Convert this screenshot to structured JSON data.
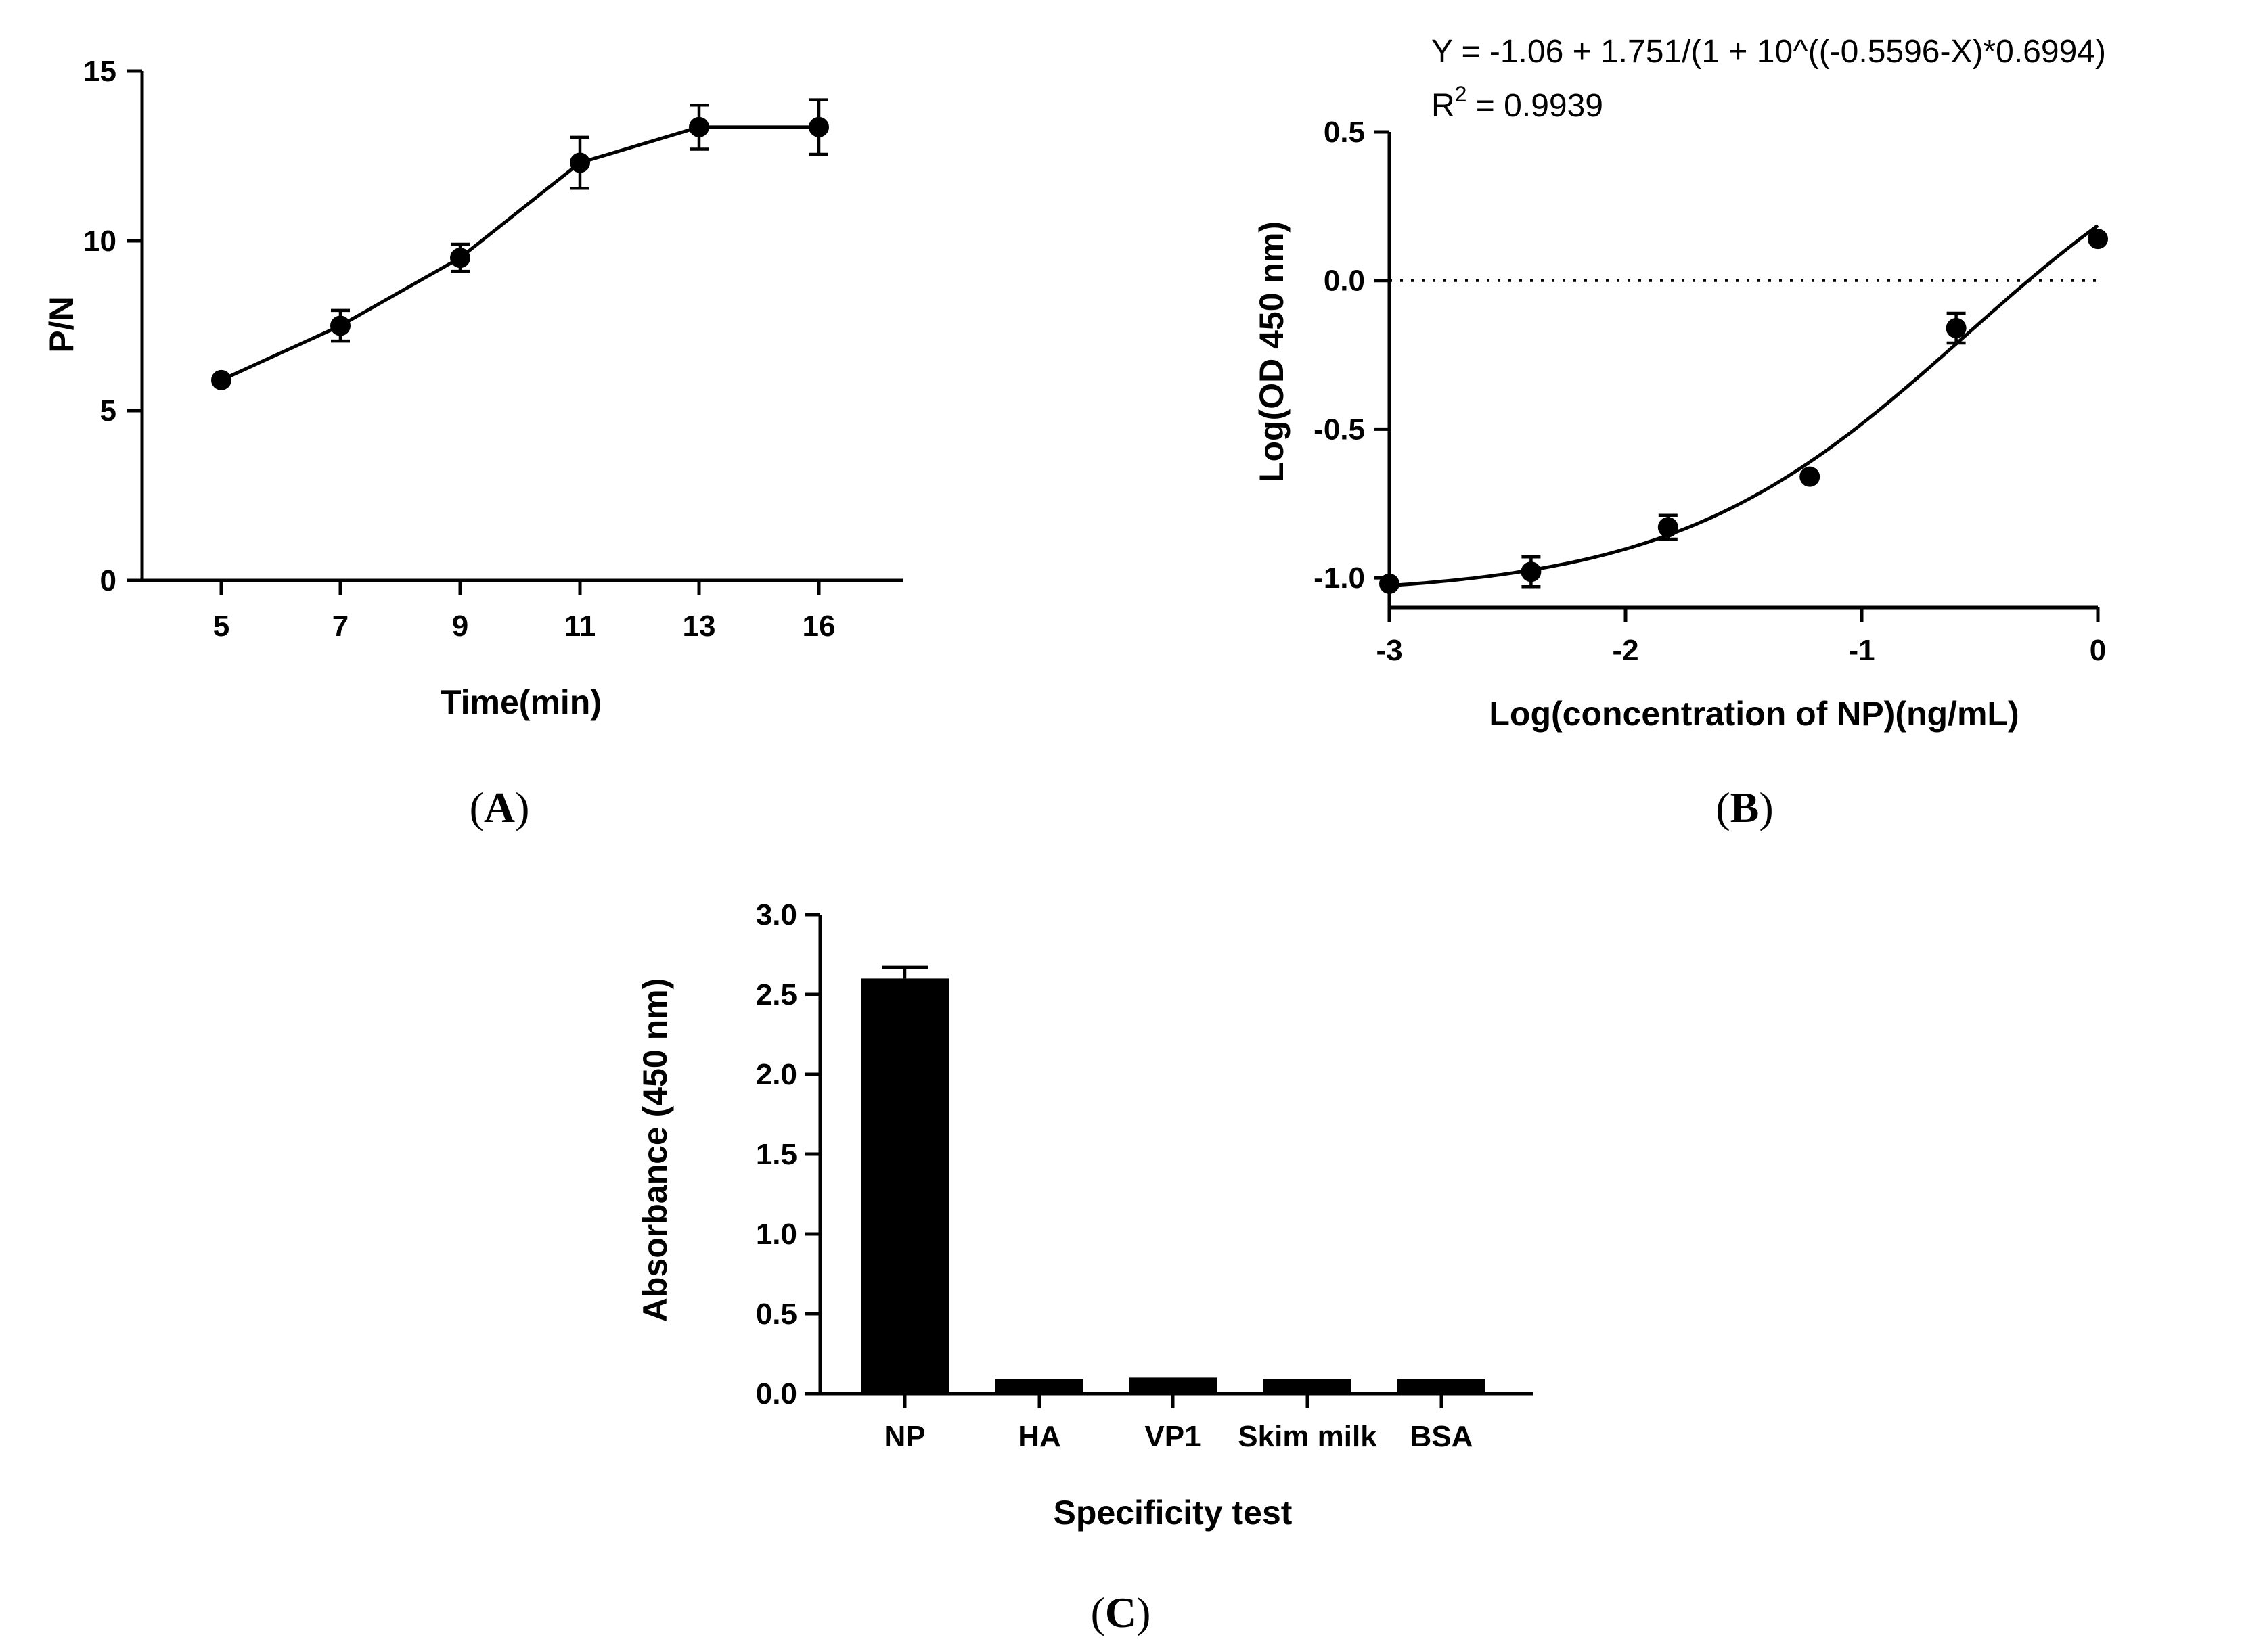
{
  "chart_data": [
    {
      "type": "line",
      "panel_label": "A",
      "xlabel": "Time(min)",
      "ylabel": "P/N",
      "ylim": [
        0,
        15
      ],
      "categories": [
        "5",
        "7",
        "9",
        "11",
        "13",
        "16"
      ],
      "x": [
        5,
        7,
        9,
        11,
        13,
        16
      ],
      "values": [
        5.9,
        7.5,
        9.5,
        12.3,
        13.35,
        13.35
      ],
      "errors": [
        0.1,
        0.45,
        0.4,
        0.75,
        0.65,
        0.8
      ],
      "yticks": [
        0,
        5,
        10,
        15
      ]
    },
    {
      "type": "scatter",
      "panel_label": "B",
      "xlabel": "Log(concentration of NP)(ng/mL)",
      "ylabel": "Log(OD 450 nm)",
      "xlim": [
        -3,
        0
      ],
      "ylim": [
        -1.1,
        0.5
      ],
      "x": [
        -3.0,
        -2.4,
        -1.82,
        -1.22,
        -0.6,
        0.0
      ],
      "y": [
        -1.02,
        -0.98,
        -0.83,
        -0.66,
        -0.16,
        0.14
      ],
      "errors": [
        0.02,
        0.05,
        0.04,
        0.02,
        0.05,
        0.02
      ],
      "xticks": [
        -3,
        -2,
        -1,
        0
      ],
      "xtick_labels": [
        "-3",
        "-2",
        "-1",
        "0"
      ],
      "yticks": [
        -1.0,
        -0.5,
        0.0,
        0.5
      ],
      "ytick_labels": [
        "-1.0",
        "-0.5",
        "0.0",
        "0.5"
      ],
      "reference_line_y": 0.0,
      "fit": {
        "bottom": -1.06,
        "span": 1.751,
        "logEC50": -0.5596,
        "hill": 0.6994,
        "equation": "Y = -1.06 + 1.751/(1 + 10^((-0.5596-X)*0.6994)",
        "r2_prefix": "R",
        "r2_sup": "2",
        "r2_value": " = 0.9939"
      }
    },
    {
      "type": "bar",
      "panel_label": "C",
      "xlabel": "Specificity test",
      "ylabel": "Absorbance (450 nm)",
      "ylim": [
        0,
        3.0
      ],
      "categories": [
        "NP",
        "HA",
        "VP1",
        "Skim milk",
        "BSA"
      ],
      "values": [
        2.6,
        0.09,
        0.1,
        0.09,
        0.09
      ],
      "errors": [
        0.07,
        0.005,
        0.005,
        0.005,
        0.005
      ],
      "yticks": [
        0,
        0.5,
        1.0,
        1.5,
        2.0,
        2.5,
        3.0
      ],
      "ytick_labels": [
        "0.0",
        "0.5",
        "1.0",
        "1.5",
        "2.0",
        "2.5",
        "3.0"
      ]
    }
  ]
}
